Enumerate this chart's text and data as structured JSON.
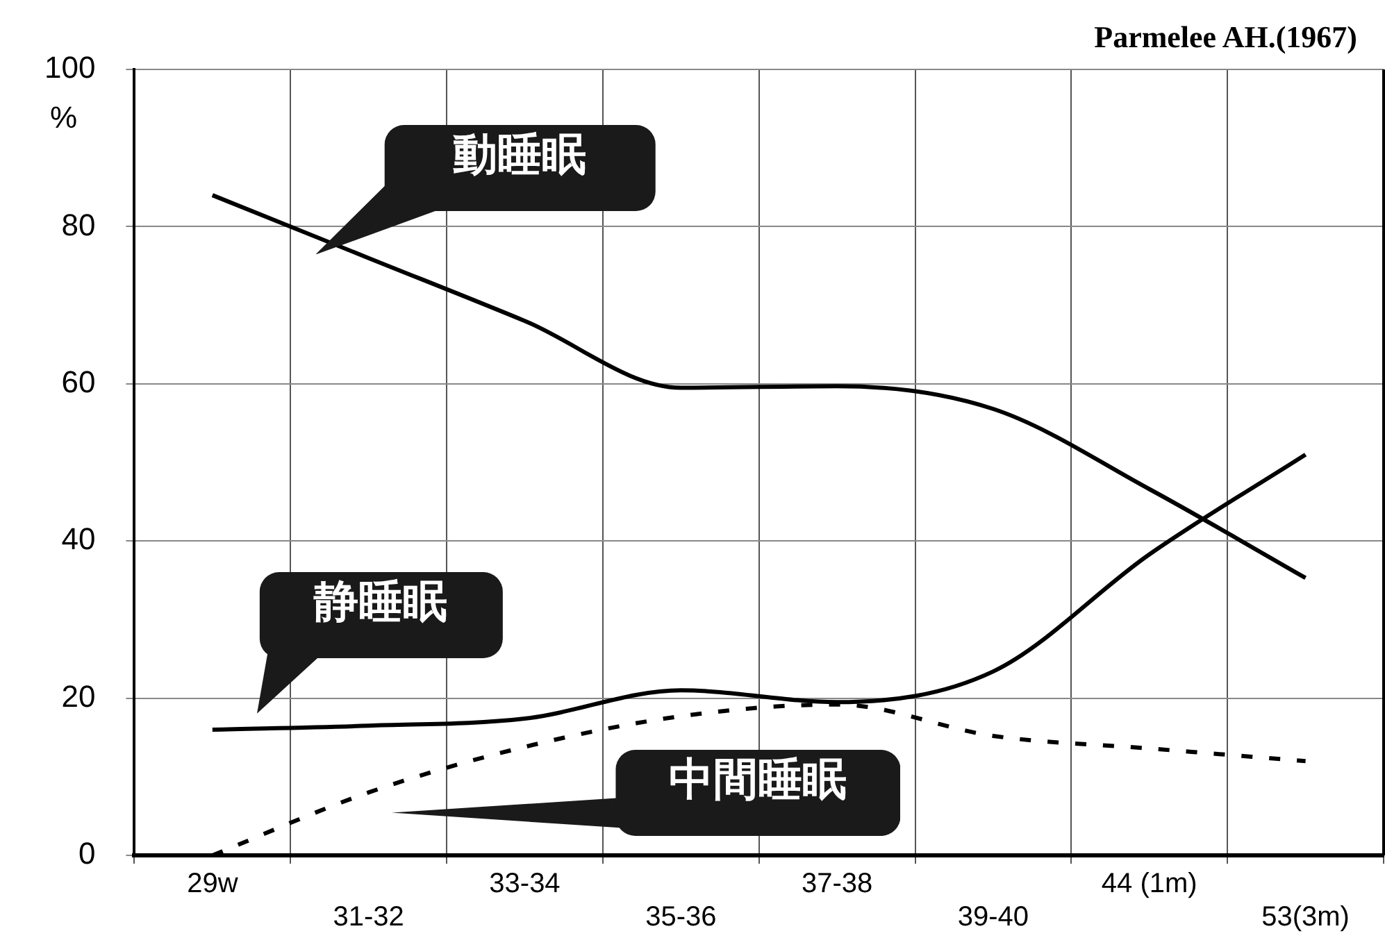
{
  "chart_data": {
    "type": "line",
    "title": "Parmelee AH.(1967)",
    "ylabel": "%",
    "categories": [
      "29w",
      "31-32",
      "33-34",
      "35-36",
      "37-38",
      "39-40",
      "44 (1m)",
      "53(3m)"
    ],
    "series": [
      {
        "name": "動睡眠",
        "color": "#000000",
        "line_style": "solid",
        "values": [
          84,
          76,
          68,
          59.5,
          59.7,
          56.8,
          46.6,
          35.3
        ]
      },
      {
        "name": "静睡眠",
        "color": "#000000",
        "line_style": "solid",
        "values": [
          16,
          16.5,
          17.4,
          21,
          19.5,
          23.4,
          38.3,
          51
        ]
      },
      {
        "name": "中間睡眠",
        "color": "#000000",
        "line_style": "dashed",
        "values": [
          0,
          8,
          13.8,
          17.7,
          19.2,
          15.2,
          13.6,
          12
        ]
      }
    ],
    "ylim": [
      0,
      100
    ],
    "yticks": [
      0,
      20,
      40,
      60,
      80,
      100
    ],
    "grid": true,
    "legend": false,
    "marker": "none"
  }
}
